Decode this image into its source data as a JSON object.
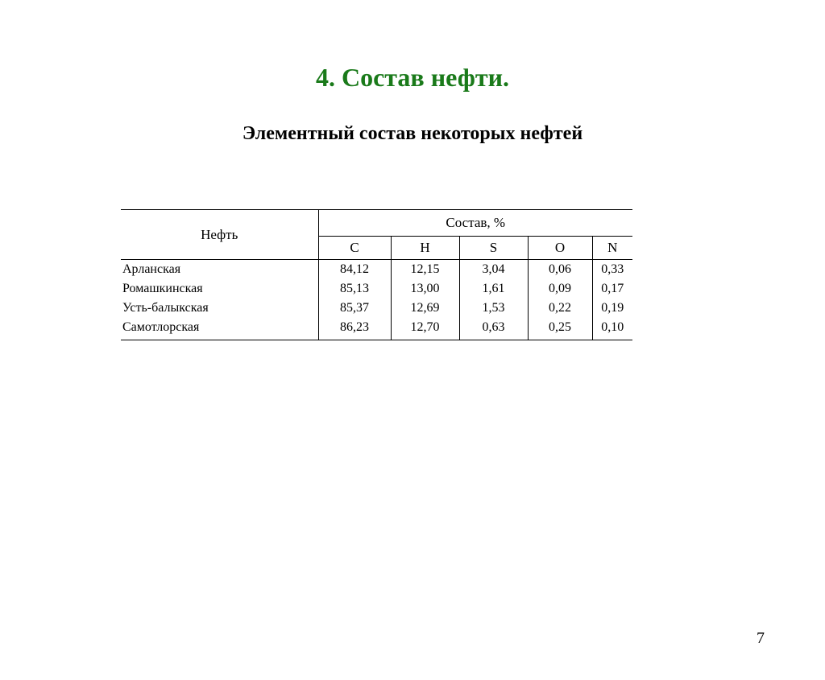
{
  "title": "4. Состав нефти.",
  "subtitle": "Элементный состав некоторых нефтей",
  "page_number": "7",
  "title_color": "#1a7a1a",
  "table": {
    "header_row1_col1": "Нефть",
    "header_row1_col2": "Состав, %",
    "columns": [
      "C",
      "H",
      "S",
      "O",
      "N"
    ],
    "rows": [
      {
        "name": "Арланская",
        "C": "84,12",
        "H": "12,15",
        "S": "3,04",
        "O": "0,06",
        "N": "0,33"
      },
      {
        "name": "Ромашкинская",
        "C": "85,13",
        "H": "13,00",
        "S": "1,61",
        "O": "0,09",
        "N": "0,17"
      },
      {
        "name": "Усть-балыкская",
        "C": "85,37",
        "H": "12,69",
        "S": "1,53",
        "O": "0,22",
        "N": "0,19"
      },
      {
        "name": "Самотлорская",
        "C": "86,23",
        "H": "12,70",
        "S": "0,63",
        "O": "0,25",
        "N": "0,10"
      }
    ]
  }
}
